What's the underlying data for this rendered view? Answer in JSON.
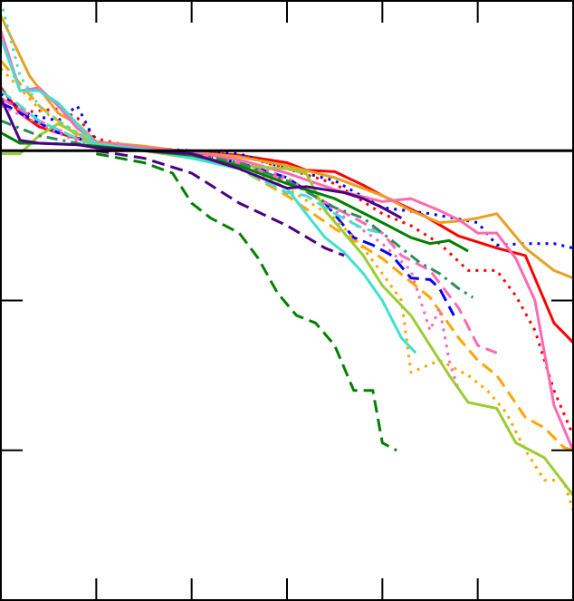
{
  "chart_data": {
    "type": "line",
    "title": "",
    "xlabel": "",
    "ylabel": "",
    "xlim": [
      0,
      6
    ],
    "ylim": [
      -3,
      1
    ],
    "grid": false,
    "legend": "none",
    "x_ticks": [
      1,
      2,
      3,
      4,
      5
    ],
    "y_ticks": [
      -2,
      -1,
      0
    ],
    "series": [
      {
        "color": "#ff0000",
        "dash": "solid",
        "x": [
          0.0,
          0.2,
          0.4,
          0.6,
          0.8,
          1.0,
          1.5,
          2.0,
          2.5,
          3.0,
          3.2,
          3.5,
          3.8,
          4.0,
          4.4,
          4.8,
          5.2,
          5.5,
          5.8,
          6.0
        ],
        "y": [
          0.42,
          0.25,
          0.16,
          0.12,
          0.08,
          0.05,
          0.01,
          -0.01,
          -0.03,
          -0.08,
          -0.13,
          -0.14,
          -0.23,
          -0.3,
          -0.42,
          -0.57,
          -0.65,
          -0.7,
          -1.15,
          -1.28
        ]
      },
      {
        "color": "#ff0000",
        "dash": "dotted",
        "x": [
          0.0,
          0.3,
          0.6,
          0.8,
          1.0,
          1.5,
          2.0,
          2.5,
          3.0,
          3.5,
          4.0,
          4.3,
          4.6,
          4.9,
          5.2,
          5.4,
          5.6,
          5.8,
          6.0
        ],
        "y": [
          0.35,
          0.26,
          0.28,
          0.22,
          0.08,
          0.01,
          0.0,
          -0.03,
          -0.12,
          -0.22,
          -0.42,
          -0.5,
          -0.62,
          -0.8,
          -0.8,
          -0.97,
          -1.2,
          -1.6,
          -1.9
        ]
      },
      {
        "color": "#0000ff",
        "dash": "dotted",
        "x": [
          0.0,
          0.3,
          0.6,
          0.8,
          1.0,
          1.5,
          2.0,
          2.5,
          3.0,
          3.5,
          4.0,
          4.5,
          5.0,
          5.2,
          5.5,
          5.8,
          6.0
        ],
        "y": [
          0.38,
          0.24,
          0.2,
          0.3,
          0.05,
          0.02,
          0.0,
          -0.02,
          -0.12,
          -0.2,
          -0.38,
          -0.42,
          -0.48,
          -0.63,
          -0.62,
          -0.62,
          -0.65
        ]
      },
      {
        "color": "#0000ff",
        "dash": "dashed",
        "x": [
          0.0,
          0.3,
          0.6,
          1.0,
          1.5,
          2.0,
          2.5,
          3.0,
          3.4,
          3.7,
          3.9,
          4.1,
          4.3,
          4.5,
          4.6,
          4.75
        ],
        "y": [
          0.32,
          0.22,
          0.12,
          0.05,
          0.0,
          -0.02,
          -0.08,
          -0.18,
          -0.35,
          -0.58,
          -0.63,
          -0.7,
          -0.85,
          -0.86,
          -0.92,
          -1.1
        ]
      },
      {
        "color": "#e8a020",
        "dash": "solid",
        "x": [
          0.0,
          0.3,
          0.6,
          0.8,
          1.0,
          1.5,
          2.0,
          2.5,
          3.0,
          3.5,
          4.0,
          4.3,
          4.6,
          4.8,
          5.0,
          5.2,
          5.5,
          5.8,
          6.0
        ],
        "y": [
          0.9,
          0.5,
          0.25,
          0.18,
          0.06,
          0.03,
          -0.01,
          -0.04,
          -0.1,
          -0.18,
          -0.3,
          -0.4,
          -0.48,
          -0.47,
          -0.45,
          -0.42,
          -0.65,
          -0.8,
          -0.85
        ]
      },
      {
        "color": "#ffa500",
        "dash": "dashed",
        "x": [
          0.0,
          0.4,
          0.8,
          1.0,
          1.5,
          2.0,
          2.5,
          3.0,
          3.5,
          4.0,
          4.5,
          4.8,
          5.0,
          5.2,
          5.5,
          5.7,
          5.9,
          6.0
        ],
        "y": [
          0.6,
          0.3,
          0.1,
          0.04,
          0.0,
          -0.03,
          -0.12,
          -0.3,
          -0.52,
          -0.72,
          -0.98,
          -1.25,
          -1.4,
          -1.5,
          -1.78,
          -1.85,
          -1.98,
          -2.0
        ]
      },
      {
        "color": "#ffa500",
        "dash": "dotted",
        "x": [
          0.0,
          0.4,
          0.8,
          1.0,
          1.5,
          2.0,
          2.5,
          3.0,
          3.5,
          3.8,
          4.0,
          4.2,
          4.3,
          4.6,
          4.9,
          5.1,
          5.3,
          5.5,
          5.7,
          5.9,
          6.0
        ],
        "y": [
          0.55,
          0.28,
          0.12,
          0.05,
          0.01,
          -0.01,
          -0.09,
          -0.25,
          -0.45,
          -0.65,
          -0.82,
          -1.0,
          -1.48,
          -1.4,
          -1.5,
          -1.6,
          -1.75,
          -2.0,
          -2.2,
          -2.2,
          -2.4
        ]
      },
      {
        "color": "#ff69b4",
        "dash": "solid",
        "x": [
          0.0,
          0.2,
          0.4,
          0.6,
          0.8,
          1.0,
          1.5,
          2.0,
          2.5,
          3.0,
          3.5,
          4.0,
          4.3,
          4.6,
          4.8,
          5.0,
          5.2,
          5.4,
          5.6,
          5.8,
          6.0
        ],
        "y": [
          0.8,
          0.4,
          0.42,
          0.3,
          0.15,
          0.06,
          0.02,
          -0.01,
          -0.06,
          -0.15,
          -0.26,
          -0.34,
          -0.32,
          -0.4,
          -0.46,
          -0.55,
          -0.55,
          -0.72,
          -1.0,
          -1.7,
          -2.0
        ]
      },
      {
        "color": "#ff69b4",
        "dash": "dashed",
        "x": [
          0.0,
          0.4,
          0.8,
          1.0,
          1.5,
          2.0,
          2.5,
          3.0,
          3.5,
          4.0,
          4.2,
          4.5,
          4.8,
          5.0,
          5.2
        ],
        "y": [
          0.35,
          0.2,
          0.08,
          0.03,
          0.0,
          -0.02,
          -0.08,
          -0.2,
          -0.38,
          -0.55,
          -0.7,
          -0.8,
          -1.05,
          -1.3,
          -1.35
        ]
      },
      {
        "color": "#ff69b4",
        "dash": "dotted",
        "x": [
          0.0,
          0.4,
          0.8,
          1.0,
          1.5,
          2.0,
          2.5,
          3.0,
          3.5,
          4.0,
          4.3,
          4.5,
          4.6,
          4.7,
          4.75,
          4.8
        ],
        "y": [
          0.3,
          0.18,
          0.06,
          0.02,
          0.0,
          -0.01,
          -0.06,
          -0.18,
          -0.4,
          -0.62,
          -0.8,
          -1.2,
          -1.05,
          -1.4,
          -1.5,
          -1.6
        ]
      },
      {
        "color": "#9acd32",
        "dash": "solid",
        "x": [
          0.0,
          0.2,
          0.4,
          0.6,
          1.0,
          1.5,
          2.0,
          2.5,
          3.0,
          3.2,
          3.4,
          3.6,
          3.8,
          4.0,
          4.3,
          4.5,
          4.7,
          4.9,
          5.2,
          5.4,
          5.7,
          6.0
        ],
        "y": [
          -0.02,
          -0.02,
          0.1,
          0.18,
          0.05,
          0.0,
          -0.05,
          -0.1,
          -0.12,
          -0.15,
          -0.4,
          -0.55,
          -0.7,
          -0.9,
          -1.1,
          -1.3,
          -1.5,
          -1.68,
          -1.72,
          -1.95,
          -2.05,
          -2.3
        ]
      },
      {
        "color": "#40e0d0",
        "dash": "solid",
        "x": [
          0.0,
          0.2,
          0.4,
          0.6,
          1.0,
          1.5,
          2.0,
          2.5,
          2.8,
          3.0,
          3.2,
          3.4,
          3.6,
          3.8,
          4.0,
          4.2,
          4.35
        ],
        "y": [
          0.75,
          0.4,
          0.4,
          0.32,
          0.04,
          0.01,
          -0.05,
          -0.12,
          -0.2,
          -0.25,
          -0.42,
          -0.58,
          -0.68,
          -0.82,
          -1.0,
          -1.25,
          -1.35
        ]
      },
      {
        "color": "#40e0d0",
        "dash": "dashed",
        "x": [
          0.0,
          0.4,
          0.8,
          1.0,
          1.5,
          2.0,
          2.5,
          3.0,
          3.2,
          3.5,
          3.8,
          4.0
        ],
        "y": [
          0.4,
          0.2,
          0.08,
          0.03,
          0.0,
          -0.03,
          -0.12,
          -0.28,
          -0.3,
          -0.42,
          -0.52,
          -0.55
        ]
      },
      {
        "color": "#40e0d0",
        "dash": "dotted",
        "x": [
          0.0,
          0.2,
          0.4,
          0.6,
          0.8,
          1.0,
          1.5,
          2.0
        ],
        "y": [
          1.0,
          0.5,
          0.3,
          0.2,
          0.12,
          0.05,
          0.0,
          -0.02
        ]
      },
      {
        "color": "#2e8b57",
        "dash": "dashdot",
        "x": [
          0.0,
          0.4,
          0.8,
          1.0,
          1.5,
          2.0,
          2.5,
          3.0,
          3.5,
          3.8,
          4.0,
          4.2,
          4.4,
          4.6,
          4.8,
          4.95
        ],
        "y": [
          0.2,
          0.1,
          0.05,
          0.02,
          0.0,
          -0.02,
          -0.08,
          -0.2,
          -0.38,
          -0.45,
          -0.55,
          -0.65,
          -0.75,
          -0.82,
          -0.92,
          -0.98
        ]
      },
      {
        "color": "#008000",
        "dash": "solid",
        "x": [
          0.0,
          0.2,
          0.4,
          0.8,
          1.0,
          1.5,
          2.0,
          2.5,
          3.0,
          3.5,
          4.0,
          4.3,
          4.5,
          4.7,
          4.9
        ],
        "y": [
          0.12,
          0.05,
          0.05,
          0.04,
          0.03,
          0.0,
          -0.03,
          -0.1,
          -0.22,
          -0.32,
          -0.48,
          -0.58,
          -0.62,
          -0.6,
          -0.67
        ]
      },
      {
        "color": "#008000",
        "dash": "dashed",
        "x": [
          1.0,
          1.5,
          1.8,
          2.0,
          2.2,
          2.5,
          2.7,
          2.9,
          3.1,
          3.3,
          3.5,
          3.7,
          3.9,
          4.0,
          4.15
        ],
        "y": [
          -0.02,
          -0.08,
          -0.15,
          -0.35,
          -0.45,
          -0.55,
          -0.72,
          -0.95,
          -1.1,
          -1.15,
          -1.3,
          -1.6,
          -1.6,
          -1.95,
          -2.0
        ]
      },
      {
        "color": "#4b0082",
        "dash": "solid",
        "x": [
          0.0,
          0.2,
          0.4,
          0.8,
          1.0,
          1.5,
          2.0,
          2.5,
          3.0,
          3.2,
          3.4,
          3.6,
          3.8,
          4.0,
          4.2
        ],
        "y": [
          0.35,
          0.07,
          0.05,
          0.04,
          0.02,
          0.0,
          -0.02,
          -0.12,
          -0.25,
          -0.24,
          -0.26,
          -0.28,
          -0.32,
          -0.38,
          -0.45
        ]
      },
      {
        "color": "#4b0082",
        "dash": "dashed",
        "x": [
          1.0,
          1.5,
          2.0,
          2.5,
          3.0,
          3.4,
          3.6
        ],
        "y": [
          0.0,
          -0.05,
          -0.15,
          -0.35,
          -0.5,
          -0.65,
          -0.7
        ]
      }
    ]
  }
}
